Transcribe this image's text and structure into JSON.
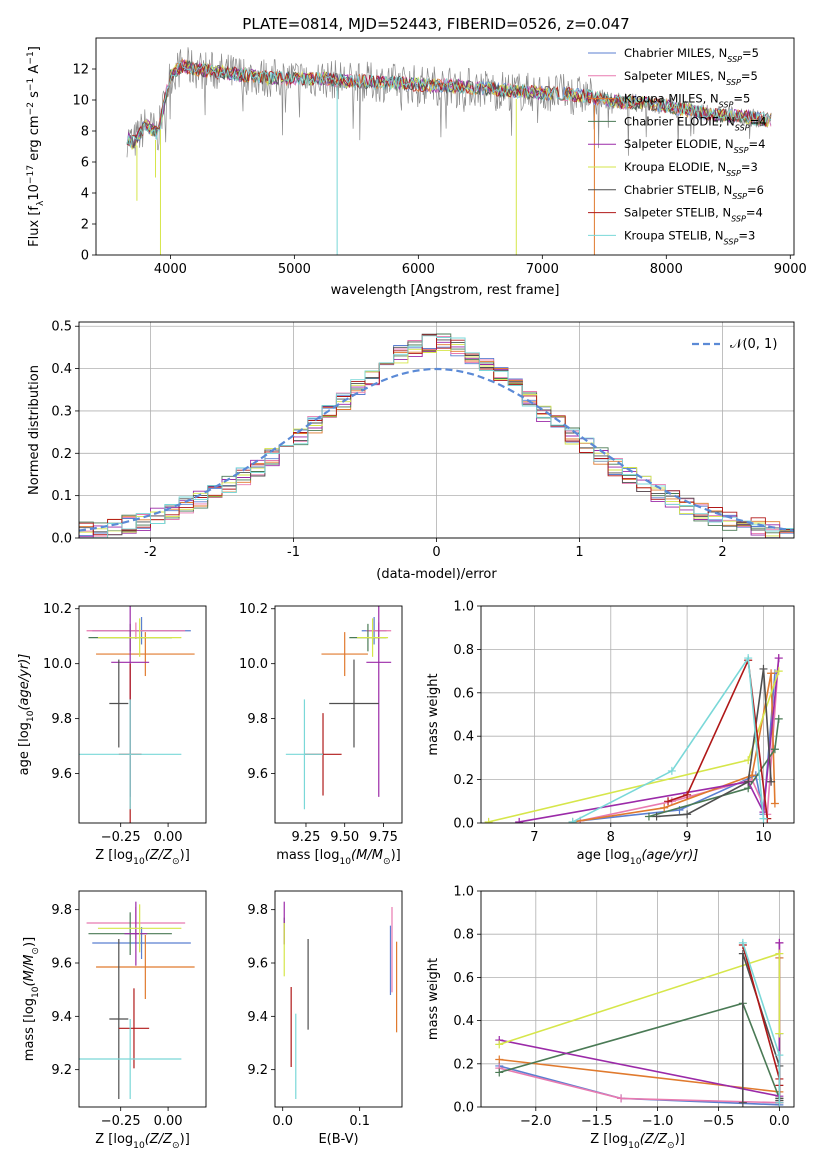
{
  "figure_title": "PLATE=0814, MJD=52443, FIBERID=0526, z=0.047",
  "colors": {
    "Chabrier MILES": "#5b7fd1",
    "Salpeter MILES": "#e87ab0",
    "Kroupa MILES": "#e07a2e",
    "Chabrier ELODIE": "#4a7a55",
    "Salpeter ELODIE": "#9b2aa8",
    "Kroupa ELODIE": "#d6e64a",
    "Chabrier STELIB": "#4f4f4f",
    "Salpeter STELIB": "#b01818",
    "Kroupa STELIB": "#7ad8d8",
    "data": "#8a8a8a",
    "normal": "#5b8ad6"
  },
  "chart_data": [
    {
      "id": "spectrum",
      "type": "line",
      "xlabel": "wavelength [Angstrom, rest frame]",
      "ylabel": "Flux [f",
      "ylabel_sub": "λ",
      "ylabel_rest": "10",
      "ylabel_exp1": "−17",
      "ylabel_mid": " erg cm",
      "ylabel_exp2": "−2",
      "ylabel_mid2": " s",
      "ylabel_exp3": "−1",
      "ylabel_end": " A",
      "ylabel_exp4": "−1",
      "ylabel_close": "]",
      "xlim": [
        3400,
        9030
      ],
      "ylim": [
        0,
        14
      ],
      "xticks": [
        4000,
        5000,
        6000,
        7000,
        8000,
        9000
      ],
      "yticks": [
        0,
        2,
        4,
        6,
        8,
        10,
        12
      ],
      "legend_position": "top-right",
      "legend": [
        {
          "name": "Chabrier MILES, N",
          "sub": "SSP",
          "val": "=5"
        },
        {
          "name": "Salpeter MILES, N",
          "sub": "SSP",
          "val": "=5"
        },
        {
          "name": "Kroupa MILES, N",
          "sub": "SSP",
          "val": "=5"
        },
        {
          "name": "Chabrier ELODIE, N",
          "sub": "SSP",
          "val": "=4"
        },
        {
          "name": "Salpeter ELODIE, N",
          "sub": "SSP",
          "val": "=4"
        },
        {
          "name": "Kroupa ELODIE, N",
          "sub": "SSP",
          "val": "=3"
        },
        {
          "name": "Chabrier STELIB, N",
          "sub": "SSP",
          "val": "=6"
        },
        {
          "name": "Salpeter STELIB, N",
          "sub": "SSP",
          "val": "=4"
        },
        {
          "name": "Kroupa STELIB, N",
          "sub": "SSP",
          "val": "=3"
        }
      ],
      "continuum": {
        "x": [
          3650,
          3700,
          3800,
          3900,
          3950,
          4000,
          4100,
          4200,
          4400,
          4600,
          4800,
          5000,
          5200,
          5500,
          5800,
          6000,
          6300,
          6600,
          6900,
          7200,
          7400,
          7600,
          7800,
          8000,
          8200,
          8400,
          8600,
          8800
        ],
        "y": [
          7.6,
          7.2,
          8.4,
          7.8,
          9.8,
          11.6,
          12.2,
          12.0,
          11.8,
          11.6,
          11.4,
          11.4,
          11.4,
          11.2,
          11.1,
          11.0,
          10.9,
          10.7,
          10.5,
          10.4,
          10.2,
          9.9,
          9.8,
          9.6,
          9.3,
          9.0,
          9.0,
          8.7
        ]
      },
      "dips": [
        {
          "x": 3920,
          "y": 0.0
        },
        {
          "x": 5345,
          "y": 0.0
        },
        {
          "x": 6790,
          "y": 0.0
        },
        {
          "x": 7420,
          "y": 0.0
        },
        {
          "x": 3730,
          "y": 3.5
        },
        {
          "x": 3880,
          "y": 5.0
        }
      ]
    },
    {
      "id": "residuals",
      "type": "histogram",
      "xlabel": "(data-model)/error",
      "ylabel": "Normed distribution",
      "xlim": [
        -2.5,
        2.5
      ],
      "ylim": [
        0,
        0.51
      ],
      "xticks": [
        -2,
        -1,
        0,
        1,
        2
      ],
      "yticks": [
        0,
        0.1,
        0.2,
        0.3,
        0.4,
        0.5
      ],
      "grid": true,
      "legend": "𝒩(0, 1)",
      "legend_position": "top-right",
      "bin_width": 0.1
    },
    {
      "id": "age_vs_Z",
      "type": "errorbar",
      "xlabel": "Z [log",
      "xlabel_sub": "10",
      "xlabel_rest": "(Z/Z",
      "xlabel_sun": "⊙",
      "xlabel_end": ")]",
      "ylabel": "age  [log",
      "ylabel_sub": "10",
      "ylabel_rest": "(age/yr)]",
      "xlim": [
        -0.47,
        0.2
      ],
      "ylim": [
        9.42,
        10.21
      ],
      "xticks": [
        -0.25,
        0.0
      ],
      "xtick_labels": [
        "−0.25",
        "0.00"
      ],
      "yticks": [
        9.6,
        9.8,
        10.0,
        10.2
      ],
      "points": [
        {
          "series": "Chabrier MILES",
          "x": -0.14,
          "y": 10.12,
          "xerr": 0.26,
          "yerr": 0.05
        },
        {
          "series": "Salpeter MILES",
          "x": -0.17,
          "y": 10.12,
          "xerr": 0.26,
          "yerr": 0.03
        },
        {
          "series": "Kroupa MILES",
          "x": -0.12,
          "y": 10.035,
          "xerr": 0.26,
          "yerr": 0.08
        },
        {
          "series": "Chabrier ELODIE",
          "x": -0.2,
          "y": 10.095,
          "xerr": 0.22,
          "yerr": 0.05
        },
        {
          "series": "Salpeter ELODIE",
          "x": -0.2,
          "y": 10.005,
          "xerr": 0.1,
          "yerr": 0.49
        },
        {
          "series": "Kroupa ELODIE",
          "x": -0.15,
          "y": 10.095,
          "xerr": 0.22,
          "yerr": 0.07
        },
        {
          "series": "Chabrier STELIB",
          "x": -0.26,
          "y": 9.855,
          "xerr": 0.05,
          "yerr": 0.16
        },
        {
          "series": "Salpeter STELIB",
          "x": -0.2,
          "y": 9.67,
          "xerr": 0.06,
          "yerr": 0.33
        },
        {
          "series": "Kroupa STELIB",
          "x": -0.2,
          "y": 9.67,
          "xerr": 0.27,
          "yerr": 0.2
        }
      ]
    },
    {
      "id": "age_vs_mass",
      "type": "errorbar",
      "xlabel": "mass [log",
      "xlabel_sub": "10",
      "xlabel_rest": "(M/M",
      "xlabel_sun": "⊙",
      "xlabel_end": ")]",
      "xlim": [
        9.05,
        9.87
      ],
      "ylim": [
        9.42,
        10.21
      ],
      "xticks": [
        9.25,
        9.5,
        9.75
      ],
      "xtick_labels": [
        "9.25",
        "9.50",
        "9.75"
      ],
      "yticks": [
        9.6,
        9.8,
        10.0,
        10.2
      ],
      "points": [
        {
          "series": "Chabrier MILES",
          "x": 9.69,
          "y": 10.12,
          "xerr": 0.08,
          "yerr": 0.05
        },
        {
          "series": "Salpeter MILES",
          "x": 9.72,
          "y": 10.12,
          "xerr": 0.08,
          "yerr": 0.03
        },
        {
          "series": "Kroupa MILES",
          "x": 9.5,
          "y": 10.035,
          "xerr": 0.15,
          "yerr": 0.08
        },
        {
          "series": "Chabrier ELODIE",
          "x": 9.65,
          "y": 10.095,
          "xerr": 0.12,
          "yerr": 0.05
        },
        {
          "series": "Salpeter ELODIE",
          "x": 9.72,
          "y": 10.005,
          "xerr": 0.08,
          "yerr": 0.49
        },
        {
          "series": "Kroupa ELODIE",
          "x": 9.68,
          "y": 10.095,
          "xerr": 0.1,
          "yerr": 0.07
        },
        {
          "series": "Chabrier STELIB",
          "x": 9.56,
          "y": 9.855,
          "xerr": 0.16,
          "yerr": 0.16
        },
        {
          "series": "Salpeter STELIB",
          "x": 9.36,
          "y": 9.67,
          "xerr": 0.12,
          "yerr": 0.15
        },
        {
          "series": "Kroupa STELIB",
          "x": 9.24,
          "y": 9.67,
          "xerr": 0.12,
          "yerr": 0.2
        }
      ]
    },
    {
      "id": "weight_vs_age",
      "type": "line",
      "xlabel": "age  [log",
      "xlabel_sub": "10",
      "xlabel_rest": "(age/yr)]",
      "ylabel": "mass weight",
      "xlim": [
        6.3,
        10.4
      ],
      "ylim": [
        0,
        1.0
      ],
      "xticks": [
        7,
        8,
        9,
        10
      ],
      "yticks": [
        0.0,
        0.2,
        0.4,
        0.6,
        0.8,
        1.0
      ],
      "grid": true,
      "series": [
        {
          "name": "Chabrier MILES",
          "x": [
            7.6,
            8.9,
            9.9,
            10.0,
            10.15
          ],
          "y": [
            0.01,
            0.06,
            0.22,
            0.04,
            0.69
          ]
        },
        {
          "name": "Salpeter MILES",
          "x": [
            7.6,
            8.8,
            9.85,
            10.05,
            10.2
          ],
          "y": [
            0.01,
            0.1,
            0.2,
            0.04,
            0.76
          ]
        },
        {
          "name": "Kroupa MILES",
          "x": [
            7.5,
            8.7,
            9.85,
            10.1,
            10.15
          ],
          "y": [
            0.005,
            0.07,
            0.22,
            0.69,
            0.09
          ]
        },
        {
          "name": "Chabrier ELODIE",
          "x": [
            8.5,
            9.8,
            10.15,
            10.2
          ],
          "y": [
            0.03,
            0.16,
            0.34,
            0.48
          ]
        },
        {
          "name": "Salpeter ELODIE",
          "x": [
            6.8,
            9.8,
            10.0,
            10.2
          ],
          "y": [
            0.005,
            0.19,
            0.05,
            0.76
          ]
        },
        {
          "name": "Kroupa ELODIE",
          "x": [
            6.4,
            9.8,
            10.2
          ],
          "y": [
            0.005,
            0.29,
            0.7
          ]
        },
        {
          "name": "Chabrier STELIB",
          "x": [
            8.6,
            9.0,
            9.8,
            10.0,
            10.1
          ],
          "y": [
            0.03,
            0.04,
            0.19,
            0.71,
            0.19
          ]
        },
        {
          "name": "Salpeter STELIB",
          "x": [
            8.75,
            9.0,
            9.8,
            10.05
          ],
          "y": [
            0.1,
            0.13,
            0.75,
            0.02
          ]
        },
        {
          "name": "Kroupa STELIB",
          "x": [
            7.5,
            8.8,
            9.8,
            10.0
          ],
          "y": [
            0.005,
            0.24,
            0.76,
            0.02
          ]
        }
      ]
    },
    {
      "id": "mass_vs_Z",
      "type": "errorbar",
      "xlabel": "Z [log",
      "xlabel_sub": "10",
      "xlabel_rest": "(Z/Z",
      "xlabel_sun": "⊙",
      "xlabel_end": ")]",
      "ylabel": "mass [log",
      "ylabel_sub": "10",
      "ylabel_rest": "(M/M",
      "ylabel_sun": "⊙",
      "ylabel_end": ")]",
      "xlim": [
        -0.47,
        0.2
      ],
      "ylim": [
        9.06,
        9.87
      ],
      "xticks": [
        -0.25,
        0.0
      ],
      "xtick_labels": [
        "−0.25",
        "0.00"
      ],
      "yticks": [
        9.2,
        9.4,
        9.6,
        9.8
      ],
      "points": [
        {
          "series": "Chabrier MILES",
          "x": -0.14,
          "y": 9.675,
          "xerr": 0.26,
          "yerr": 0.06
        },
        {
          "series": "Salpeter MILES",
          "x": -0.17,
          "y": 9.75,
          "xerr": 0.26,
          "yerr": 0.06
        },
        {
          "series": "Kroupa MILES",
          "x": -0.12,
          "y": 9.585,
          "xerr": 0.26,
          "yerr": 0.12
        },
        {
          "series": "Chabrier ELODIE",
          "x": -0.2,
          "y": 9.71,
          "xerr": 0.22,
          "yerr": 0.08
        },
        {
          "series": "Salpeter ELODIE",
          "x": -0.17,
          "y": 9.71,
          "xerr": 0.06,
          "yerr": 0.12
        },
        {
          "series": "Kroupa ELODIE",
          "x": -0.15,
          "y": 9.73,
          "xerr": 0.22,
          "yerr": 0.09
        },
        {
          "series": "Chabrier STELIB",
          "x": -0.26,
          "y": 9.39,
          "xerr": 0.05,
          "yerr": 0.3
        },
        {
          "series": "Salpeter STELIB",
          "x": -0.18,
          "y": 9.355,
          "xerr": 0.08,
          "yerr": 0.15
        },
        {
          "series": "Kroupa STELIB",
          "x": -0.2,
          "y": 9.24,
          "xerr": 0.27,
          "yerr": 0.15
        }
      ]
    },
    {
      "id": "mass_vs_ebv",
      "type": "errorbar",
      "xlabel": "E(B-V)",
      "xlim": [
        -0.01,
        0.155
      ],
      "ylim": [
        9.06,
        9.87
      ],
      "xticks": [
        0.0,
        0.1
      ],
      "xtick_labels": [
        "0.0",
        "0.1"
      ],
      "yticks": [
        9.2,
        9.4,
        9.6,
        9.8
      ],
      "points": [
        {
          "series": "Chabrier MILES",
          "x": 0.14,
          "y": 9.61,
          "xerr": 0,
          "yerr": 0.13
        },
        {
          "series": "Salpeter MILES",
          "x": 0.142,
          "y": 9.65,
          "xerr": 0,
          "yerr": 0.16
        },
        {
          "series": "Kroupa MILES",
          "x": 0.148,
          "y": 9.51,
          "xerr": 0,
          "yerr": 0.17
        },
        {
          "series": "Chabrier ELODIE",
          "x": 0.002,
          "y": 9.72,
          "xerr": 0,
          "yerr": 0.05
        },
        {
          "series": "Salpeter ELODIE",
          "x": 0.002,
          "y": 9.75,
          "xerr": 0,
          "yerr": 0.08
        },
        {
          "series": "Kroupa ELODIE",
          "x": 0.002,
          "y": 9.65,
          "xerr": 0,
          "yerr": 0.1
        },
        {
          "series": "Chabrier STELIB",
          "x": 0.033,
          "y": 9.52,
          "xerr": 0,
          "yerr": 0.17
        },
        {
          "series": "Salpeter STELIB",
          "x": 0.011,
          "y": 9.36,
          "xerr": 0,
          "yerr": 0.15
        },
        {
          "series": "Kroupa STELIB",
          "x": 0.017,
          "y": 9.25,
          "xerr": 0,
          "yerr": 0.16
        }
      ]
    },
    {
      "id": "weight_vs_Z",
      "type": "line",
      "xlabel": "Z [log",
      "xlabel_sub": "10",
      "xlabel_rest": "(Z/Z",
      "xlabel_sun": "⊙",
      "xlabel_end": ")]",
      "ylabel": "mass weight",
      "xlim": [
        -2.45,
        0.12
      ],
      "ylim": [
        0,
        1.0
      ],
      "xticks": [
        -2.0,
        -1.5,
        -1.0,
        -0.5,
        0.0
      ],
      "xtick_labels": [
        "−2.0",
        "−1.5",
        "−1.0",
        "−0.5",
        "0.0"
      ],
      "yticks": [
        0.0,
        0.2,
        0.4,
        0.6,
        0.8,
        1.0
      ],
      "grid": true,
      "series": [
        {
          "name": "Chabrier MILES",
          "x": [
            -2.3,
            -1.3,
            0.0,
            0.0
          ],
          "y": [
            0.19,
            0.04,
            0.01,
            0.69
          ]
        },
        {
          "name": "Salpeter MILES",
          "x": [
            -2.3,
            -1.3,
            0.0,
            0.0
          ],
          "y": [
            0.18,
            0.04,
            0.02,
            0.76
          ]
        },
        {
          "name": "Kroupa MILES",
          "x": [
            -2.3,
            0.0,
            0.0
          ],
          "y": [
            0.22,
            0.07,
            0.69
          ]
        },
        {
          "name": "Chabrier ELODIE",
          "x": [
            -2.3,
            -0.3,
            0.0,
            0.0
          ],
          "y": [
            0.16,
            0.48,
            0.04,
            0.34
          ]
        },
        {
          "name": "Salpeter ELODIE",
          "x": [
            -2.3,
            0.0,
            0.0
          ],
          "y": [
            0.31,
            0.05,
            0.76
          ]
        },
        {
          "name": "Kroupa ELODIE",
          "x": [
            -2.3,
            0.0,
            0.0
          ],
          "y": [
            0.29,
            0.71,
            0.34
          ]
        },
        {
          "name": "Chabrier STELIB",
          "x": [
            -0.3,
            -0.3,
            0.0,
            0.0,
            0.0,
            0.0
          ],
          "y": [
            0.02,
            0.71,
            0.19,
            0.04,
            0.03,
            0.03
          ]
        },
        {
          "name": "Salpeter STELIB",
          "x": [
            -0.3,
            0.0,
            0.0,
            0.0
          ],
          "y": [
            0.75,
            0.13,
            0.1,
            0.02
          ]
        },
        {
          "name": "Kroupa STELIB",
          "x": [
            -0.3,
            0.0,
            0.0
          ],
          "y": [
            0.76,
            0.24,
            0.02
          ]
        }
      ]
    }
  ]
}
